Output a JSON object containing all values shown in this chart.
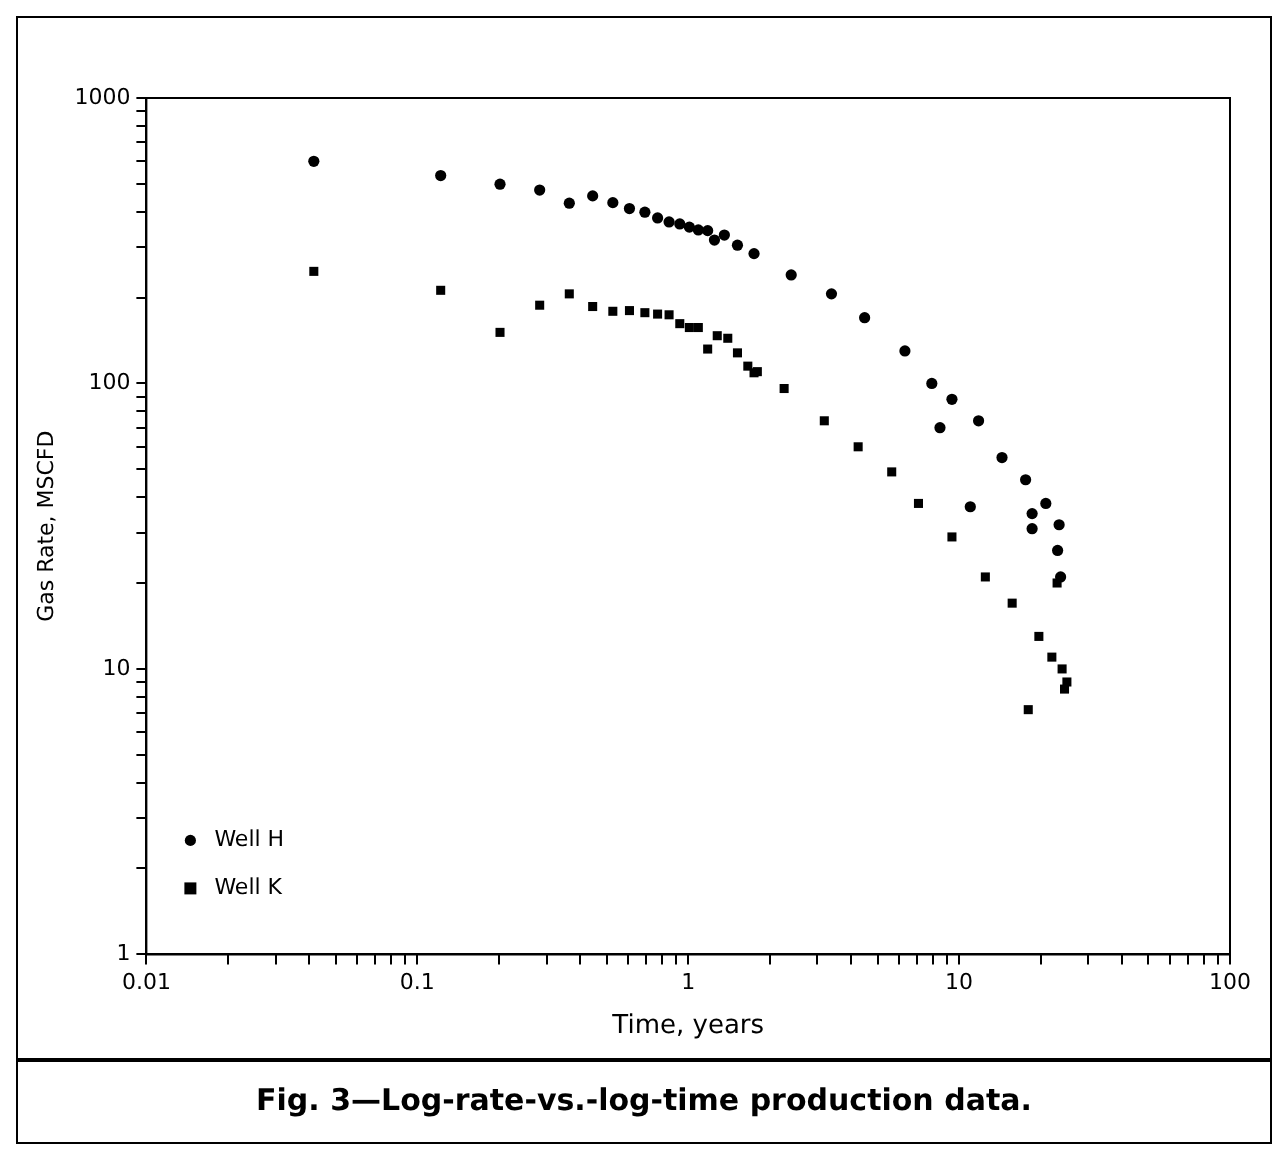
{
  "chart_data": {
    "type": "scatter",
    "title": "Fig. 3—Log-rate-vs.-log-time production data.",
    "xlabel": "Time, years",
    "ylabel": "Gas Rate, MSCFD",
    "log": "xy",
    "legend": "bottom left",
    "grid": false,
    "xlim": [
      0.01,
      100
    ],
    "ylim": [
      1,
      1000
    ],
    "xticks": [
      0.01,
      {
        "value": 0.02,
        "label": null
      },
      {
        "value": 0.03,
        "label": null
      },
      {
        "value": 0.04,
        "label": null
      },
      {
        "value": 0.05,
        "label": null
      },
      {
        "value": 0.06,
        "label": null
      },
      {
        "value": 0.07,
        "label": null
      },
      {
        "value": 0.08,
        "label": null
      },
      {
        "value": 0.09,
        "label": null
      },
      0.1,
      {
        "value": 0.2,
        "label": null
      },
      {
        "value": 0.3,
        "label": null
      },
      {
        "value": 0.4,
        "label": null
      },
      {
        "value": 0.5,
        "label": null
      },
      {
        "value": 0.6,
        "label": null
      },
      {
        "value": 0.7,
        "label": null
      },
      {
        "value": 0.8,
        "label": null
      },
      {
        "value": 0.9,
        "label": null
      },
      1,
      {
        "value": 2,
        "label": null
      },
      {
        "value": 3,
        "label": null
      },
      {
        "value": 4,
        "label": null
      },
      {
        "value": 5,
        "label": null
      },
      {
        "value": 6,
        "label": null
      },
      {
        "value": 7,
        "label": null
      },
      {
        "value": 8,
        "label": null
      },
      {
        "value": 9,
        "label": null
      },
      10,
      {
        "value": 20,
        "label": null
      },
      {
        "value": 30,
        "label": null
      },
      {
        "value": 40,
        "label": null
      },
      {
        "value": 50,
        "label": null
      },
      {
        "value": 60,
        "label": null
      },
      {
        "value": 70,
        "label": null
      },
      {
        "value": 80,
        "label": null
      },
      {
        "value": 90,
        "label": null
      },
      100
    ],
    "yticks": [
      1,
      {
        "value": 2,
        "label": null
      },
      {
        "value": 3,
        "label": null
      },
      {
        "value": 4,
        "label": null
      },
      {
        "value": 5,
        "label": null
      },
      {
        "value": 6,
        "label": null
      },
      {
        "value": 7,
        "label": null
      },
      {
        "value": 8,
        "label": null
      },
      {
        "value": 9,
        "label": null
      },
      10,
      {
        "value": 20,
        "label": null
      },
      {
        "value": 30,
        "label": null
      },
      {
        "value": 40,
        "label": null
      },
      {
        "value": 50,
        "label": null
      },
      {
        "value": 60,
        "label": null
      },
      {
        "value": 70,
        "label": null
      },
      {
        "value": 80,
        "label": null
      },
      {
        "value": 90,
        "label": null
      },
      100,
      {
        "value": 200,
        "label": null
      },
      {
        "value": 300,
        "label": null
      },
      {
        "value": 400,
        "label": null
      },
      {
        "value": 500,
        "label": null
      },
      {
        "value": 600,
        "label": null
      },
      {
        "value": 700,
        "label": null
      },
      {
        "value": 800,
        "label": null
      },
      {
        "value": 900,
        "label": null
      },
      1000
    ],
    "series": [
      {
        "name": "Well H",
        "color": "#000000",
        "marker": "circle",
        "x": [
          0.0415,
          0.122,
          0.202,
          0.283,
          0.364,
          0.444,
          0.527,
          0.607,
          0.692,
          0.771,
          0.85,
          0.931,
          1.01,
          1.09,
          1.18,
          1.25,
          1.36,
          1.52,
          1.75,
          2.4,
          3.38,
          4.48,
          6.31,
          7.93,
          9.41,
          11.8,
          14.4,
          17.6,
          20.9,
          23.4,
          23.1,
          8.5,
          11.0,
          18.6,
          18.6,
          23.7
        ],
        "values": [
          600,
          535,
          499,
          476,
          428,
          454,
          430,
          410,
          398,
          380,
          368,
          362,
          353,
          345,
          343,
          318,
          331,
          305,
          285,
          240,
          206,
          170,
          130,
          100,
          88,
          74,
          55,
          46,
          38,
          32,
          26,
          70,
          37,
          35,
          31,
          21
        ]
      },
      {
        "name": "Well K",
        "color": "#000000",
        "marker": "square",
        "x": [
          0.0415,
          0.122,
          0.202,
          0.283,
          0.364,
          0.444,
          0.527,
          0.607,
          0.692,
          0.771,
          0.85,
          0.931,
          1.01,
          1.09,
          1.18,
          1.28,
          1.4,
          1.52,
          1.66,
          1.75,
          1.8,
          2.26,
          3.18,
          4.24,
          5.64,
          7.08,
          9.41,
          12.5,
          15.7,
          19.7,
          22,
          24,
          25,
          18,
          24.5,
          23
        ],
        "values": [
          247,
          212,
          151,
          188,
          206,
          186,
          179,
          180,
          177,
          175,
          174,
          162,
          157,
          157,
          132,
          147,
          144,
          128,
          115,
          109,
          110,
          96,
          74,
          60,
          49,
          38,
          29,
          21,
          17,
          13,
          11,
          10,
          9,
          7.2,
          8.5,
          20
        ]
      }
    ]
  }
}
